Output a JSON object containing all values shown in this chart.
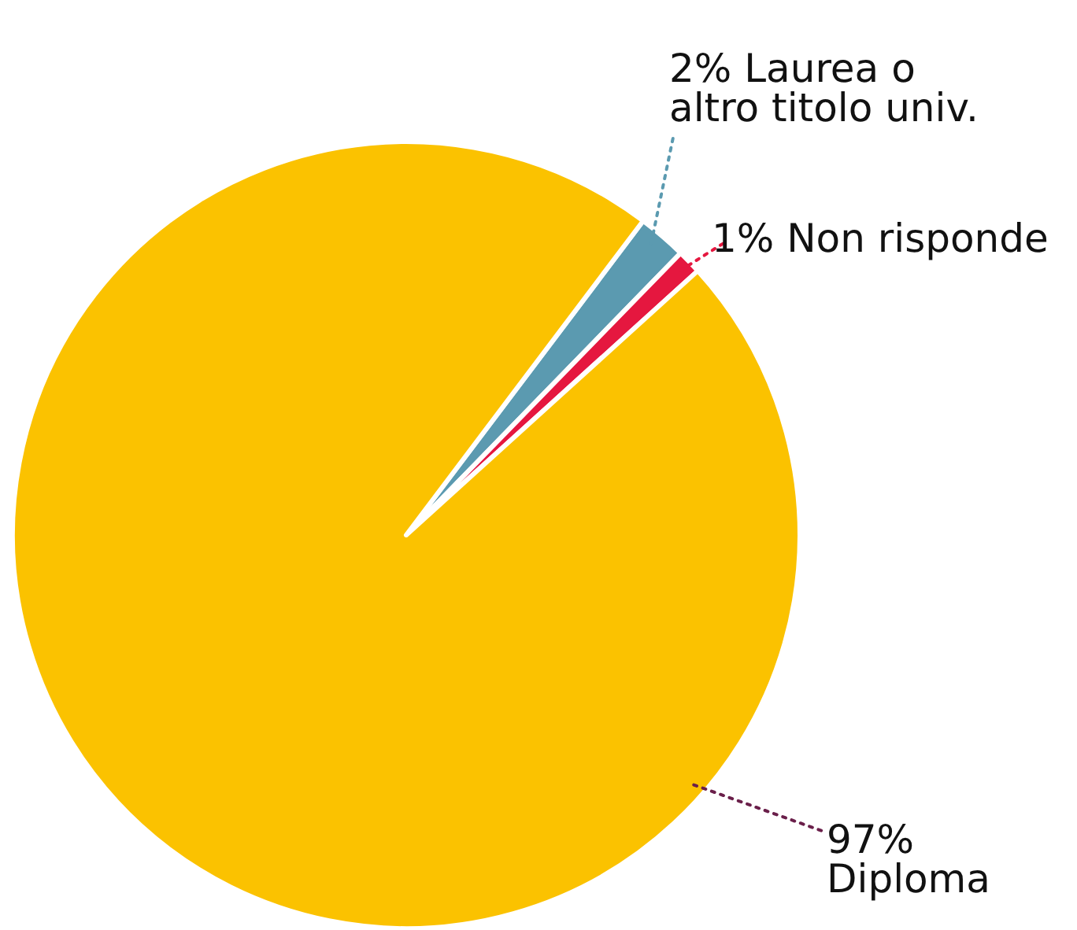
{
  "chart_data": {
    "type": "pie",
    "categories": [
      "Laurea o altro titolo univ.",
      "Non risponde",
      "Diploma"
    ],
    "values": [
      2,
      1,
      97
    ],
    "colors": [
      "#5b9ab0",
      "#e5173f",
      "#fbc200"
    ],
    "value_labels": [
      "2%",
      "1%",
      "97%"
    ]
  }
}
